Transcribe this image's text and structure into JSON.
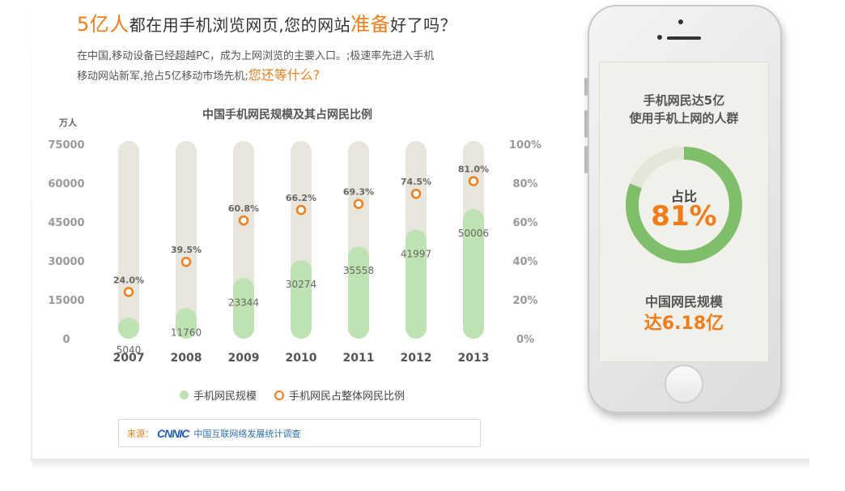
{
  "headline": {
    "part1": "5亿人",
    "part2": "都在用手机浏览网页,您的网站",
    "part3": "准备",
    "part4": "好了吗？"
  },
  "intro": {
    "line1": "在中国,移动设备已经超越PC，成为上网浏览的主要入口。;极速率先进入手机",
    "line2": "移动网站新军,抢占5亿移动市场先机;",
    "highlight": "您还等什么?"
  },
  "chart_data": {
    "type": "bar",
    "title": "中国手机网民规模及其占网民比例",
    "ylabel": "万人",
    "categories": [
      "2007",
      "2008",
      "2009",
      "2010",
      "2011",
      "2012",
      "2013"
    ],
    "ylim": [
      0,
      75000
    ],
    "yticks": [
      "75000",
      "60000",
      "45000",
      "30000",
      "15000",
      "0"
    ],
    "y2lim": [
      0,
      100
    ],
    "y2ticks": [
      "100%",
      "80%",
      "60%",
      "40%",
      "20%",
      "0%"
    ],
    "series": [
      {
        "name": "手机网民规模",
        "values": [
          5040,
          11760,
          23344,
          30274,
          35558,
          41997,
          50006
        ],
        "color": "#bfe2b2"
      },
      {
        "name": "手机网民占整体网民比例",
        "values": [
          24.0,
          39.5,
          60.8,
          66.2,
          69.3,
          74.5,
          81.0
        ],
        "color": "#f07d1a"
      }
    ],
    "value_labels": [
      "5040",
      "11760",
      "23344",
      "30274",
      "35558",
      "41997",
      "50006"
    ],
    "percent_labels": [
      "24.0%",
      "39.5%",
      "60.8%",
      "66.2%",
      "69.3%",
      "74.5%",
      "81.0%"
    ],
    "legend": "bottom",
    "grid": false
  },
  "source": {
    "label": "来源：",
    "logo": "CNNIC",
    "text": "中国互联网络发展统计调查"
  },
  "phone": {
    "title_line1": "手机网民达5亿",
    "title_line2": "使用手机上网的人群",
    "ring_label": "占比",
    "ring_value": "81%",
    "ring_fraction": 0.81,
    "scale_label": "中国网民规模",
    "scale_value": "达6.18亿"
  },
  "colors": {
    "accent": "#f07d1a",
    "bar": "#bfe2b2",
    "track": "#e8e6dc",
    "ring": "#7fbf6b"
  }
}
